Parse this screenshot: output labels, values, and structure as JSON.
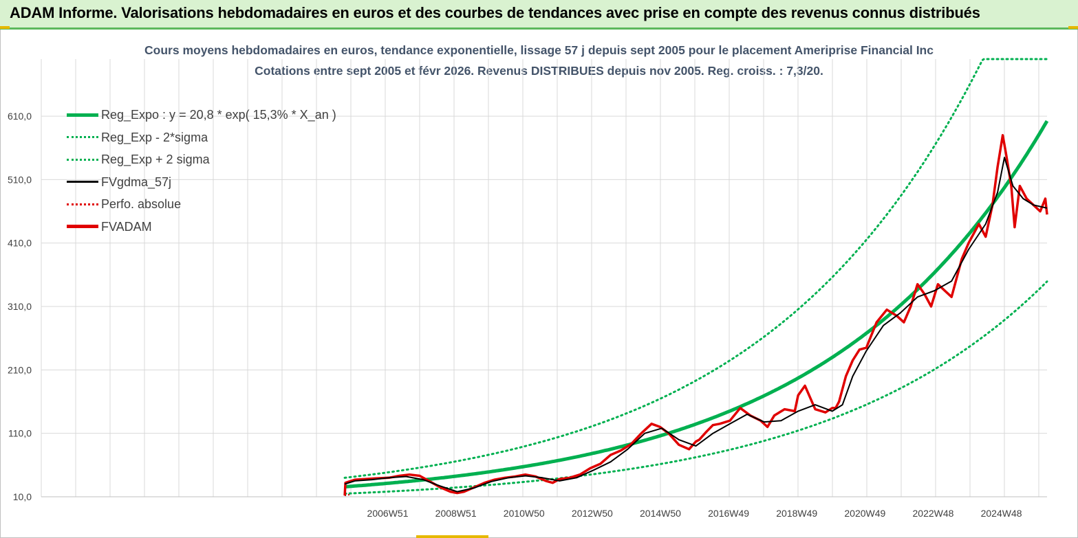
{
  "banner": {
    "title": "ADAM Informe. Valorisations hebdomadaires en euros et des courbes de tendances avec prise en compte des revenus connus distribués"
  },
  "chart_data": {
    "type": "line",
    "title_line1": "Cours moyens hebdomadaires en euros, tendance exponentielle, lissage 57 j depuis sept 2005 pour le placement Ameriprise Financial Inc",
    "title_line2": "Cotations entre sept 2005  et févr 2026.  Revenus DISTRIBUES depuis nov 2005.  Reg. croiss. : 7,3/20.",
    "xlabel": "",
    "ylabel": "",
    "ylim": [
      10,
      700
    ],
    "yticks": [
      10,
      110,
      210,
      310,
      410,
      510,
      610
    ],
    "ytick_labels": [
      "10,0",
      "110,0",
      "210,0",
      "310,0",
      "410,0",
      "510,0",
      "610,0"
    ],
    "xlim": [
      1996.8,
      2026.3
    ],
    "xticks": [
      2006.96,
      2008.96,
      2010.96,
      2012.96,
      2014.96,
      2016.96,
      2018.96,
      2020.96,
      2022.96,
      2024.96
    ],
    "xtick_labels": [
      "2006W51",
      "2008W51",
      "2010W50",
      "2012W50",
      "2014W50",
      "2016W49",
      "2018W49",
      "2020W49",
      "2022W48",
      "2024W48"
    ],
    "grid": true,
    "regression": {
      "a": 20.8,
      "b": 0.153,
      "x0": 2005.7,
      "minus_2sigma_factor": 0.58,
      "plus_2sigma_factor": 1.55
    },
    "series": [
      {
        "name": "FVADAM",
        "color": "#e00000",
        "x": [
          2005.7,
          2005.72,
          2006.0,
          2006.3,
          2006.6,
          2007.0,
          2007.3,
          2007.6,
          2007.9,
          2008.2,
          2008.5,
          2008.8,
          2009.0,
          2009.2,
          2009.5,
          2009.8,
          2010.1,
          2010.4,
          2010.7,
          2011.0,
          2011.3,
          2011.6,
          2011.8,
          2012.0,
          2012.3,
          2012.6,
          2012.9,
          2013.2,
          2013.5,
          2013.8,
          2014.1,
          2014.4,
          2014.7,
          2014.95,
          2015.2,
          2015.5,
          2015.8,
          2016.0,
          2016.1,
          2016.3,
          2016.5,
          2016.7,
          2017.0,
          2017.3,
          2017.6,
          2017.9,
          2018.1,
          2018.3,
          2018.6,
          2018.9,
          2019.0,
          2019.2,
          2019.5,
          2019.8,
          2020.0,
          2020.1,
          2020.2,
          2020.4,
          2020.6,
          2020.8,
          2021.0,
          2021.3,
          2021.6,
          2021.9,
          2022.1,
          2022.3,
          2022.5,
          2022.7,
          2022.9,
          2023.1,
          2023.3,
          2023.5,
          2023.8,
          2024.0,
          2024.3,
          2024.5,
          2024.7,
          2024.85,
          2025.0,
          2025.1,
          2025.25,
          2025.35,
          2025.5,
          2025.7,
          2025.9,
          2026.1,
          2026.25,
          2026.3
        ],
        "values": [
          12,
          32,
          37,
          38,
          39,
          40,
          43,
          45,
          43,
          34,
          25,
          18,
          16,
          18,
          25,
          32,
          37,
          40,
          42,
          45,
          42,
          35,
          32,
          38,
          40,
          45,
          55,
          62,
          76,
          83,
          93,
          110,
          125,
          120,
          110,
          92,
          85,
          97,
          100,
          112,
          123,
          125,
          130,
          150,
          138,
          130,
          120,
          138,
          148,
          145,
          170,
          185,
          148,
          143,
          150,
          150,
          160,
          200,
          225,
          242,
          245,
          285,
          305,
          295,
          285,
          310,
          345,
          330,
          310,
          345,
          335,
          325,
          385,
          410,
          440,
          420,
          470,
          530,
          580,
          550,
          500,
          435,
          500,
          480,
          470,
          460,
          480,
          455
        ],
        "style": "solid-thick"
      },
      {
        "name": "FVgdma_57j",
        "color": "#000000",
        "x": [
          2005.7,
          2006.0,
          2006.5,
          2007.0,
          2007.5,
          2008.0,
          2008.5,
          2009.0,
          2009.5,
          2010.0,
          2010.5,
          2011.0,
          2011.5,
          2012.0,
          2012.5,
          2013.0,
          2013.5,
          2014.0,
          2014.5,
          2015.0,
          2015.5,
          2016.0,
          2016.5,
          2017.0,
          2017.5,
          2018.0,
          2018.5,
          2019.0,
          2019.5,
          2020.0,
          2020.3,
          2020.6,
          2021.0,
          2021.5,
          2022.0,
          2022.5,
          2023.0,
          2023.5,
          2024.0,
          2024.5,
          2024.85,
          2025.05,
          2025.3,
          2025.6,
          2025.9,
          2026.3
        ],
        "values": [
          30,
          35,
          37,
          40,
          42,
          37,
          27,
          18,
          24,
          34,
          40,
          43,
          40,
          35,
          40,
          52,
          65,
          85,
          110,
          118,
          100,
          90,
          110,
          125,
          140,
          128,
          130,
          145,
          155,
          145,
          155,
          200,
          240,
          280,
          300,
          325,
          335,
          350,
          400,
          440,
          490,
          545,
          500,
          480,
          470,
          465
        ],
        "style": "solid-thin"
      },
      {
        "name": "Perfo. absolue",
        "color": "#c00000",
        "x": [
          2005.7,
          2005.9
        ],
        "values": [
          12,
          14
        ],
        "style": "dotted-red"
      }
    ],
    "legend": [
      {
        "label": "Reg_Expo : y = 20,8 * exp( 15,3% *  X_an )",
        "color": "#00b050",
        "style": "solid-thick"
      },
      {
        "label": "Reg_Exp - 2*sigma",
        "color": "#00b050",
        "style": "dotted"
      },
      {
        "label": "Reg_Exp + 2 sigma",
        "color": "#00b050",
        "style": "dotted"
      },
      {
        "label": "FVgdma_57j",
        "color": "#000000",
        "style": "solid-medium"
      },
      {
        "label": "Perfo. absolue",
        "color": "#e00000",
        "style": "dotted"
      },
      {
        "label": "FVADAM",
        "color": "#e00000",
        "style": "solid-thick"
      }
    ]
  }
}
